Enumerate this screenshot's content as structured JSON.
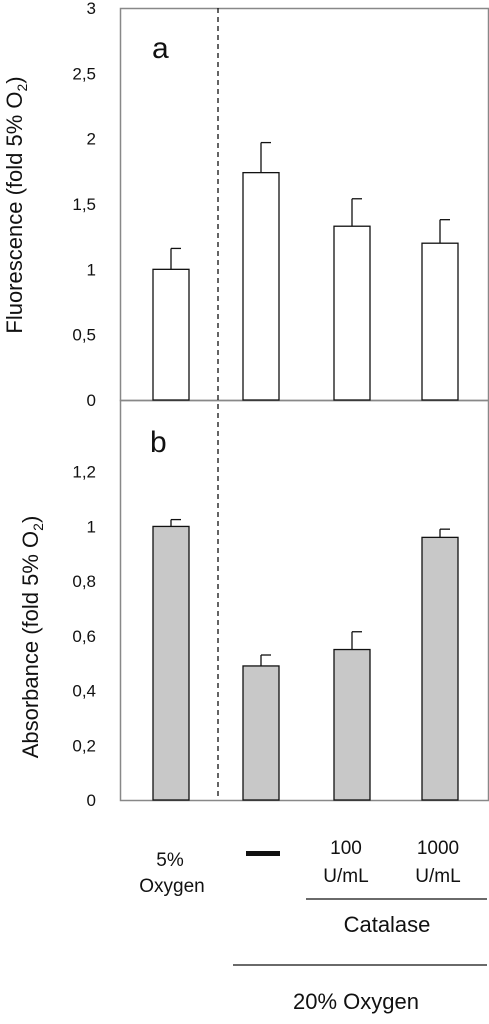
{
  "colors": {
    "bar_a": "#ffffff",
    "bar_b": "#c8c8c8",
    "stroke": "#111111",
    "frame": "#888888"
  },
  "chart_data": [
    {
      "type": "bar",
      "panel_label": "a",
      "ylabel": "Fluorescence (fold 5% O",
      "ylabel_sub": "2",
      "ylabel_close": ")",
      "ylim": [
        0,
        3
      ],
      "yticks": [
        "0",
        "0,5",
        "1",
        "1,5",
        "2",
        "2,5",
        "3"
      ],
      "categories": [
        "5% Oxygen",
        "—",
        "100 U/mL",
        "1000 U/mL"
      ],
      "values": [
        1.0,
        1.74,
        1.33,
        1.2
      ],
      "errors": [
        0.16,
        0.23,
        0.21,
        0.18
      ],
      "bar_color": "#ffffff"
    },
    {
      "type": "bar",
      "panel_label": "b",
      "ylabel": "Absorbance (fold 5% O",
      "ylabel_sub": "2",
      "ylabel_close": ")",
      "ylim": [
        0,
        1.4
      ],
      "yticks": [
        "0",
        "0,2",
        "0,4",
        "0,6",
        "0,8",
        "1",
        "1,2"
      ],
      "categories": [
        "5% Oxygen",
        "—",
        "100 U/mL",
        "1000 U/mL"
      ],
      "values": [
        1.0,
        0.49,
        0.55,
        0.96
      ],
      "errors": [
        0.025,
        0.04,
        0.065,
        0.03
      ],
      "bar_color": "#c8c8c8"
    }
  ],
  "x_labels": {
    "five_pct_line1": "5%",
    "five_pct_line2": "Oxygen",
    "dash": "—",
    "c100_line1": "100",
    "c100_line2": "U/mL",
    "c1000_line1": "1000",
    "c1000_line2": "U/mL",
    "catalase": "Catalase",
    "twenty_pct": "20% Oxygen"
  }
}
